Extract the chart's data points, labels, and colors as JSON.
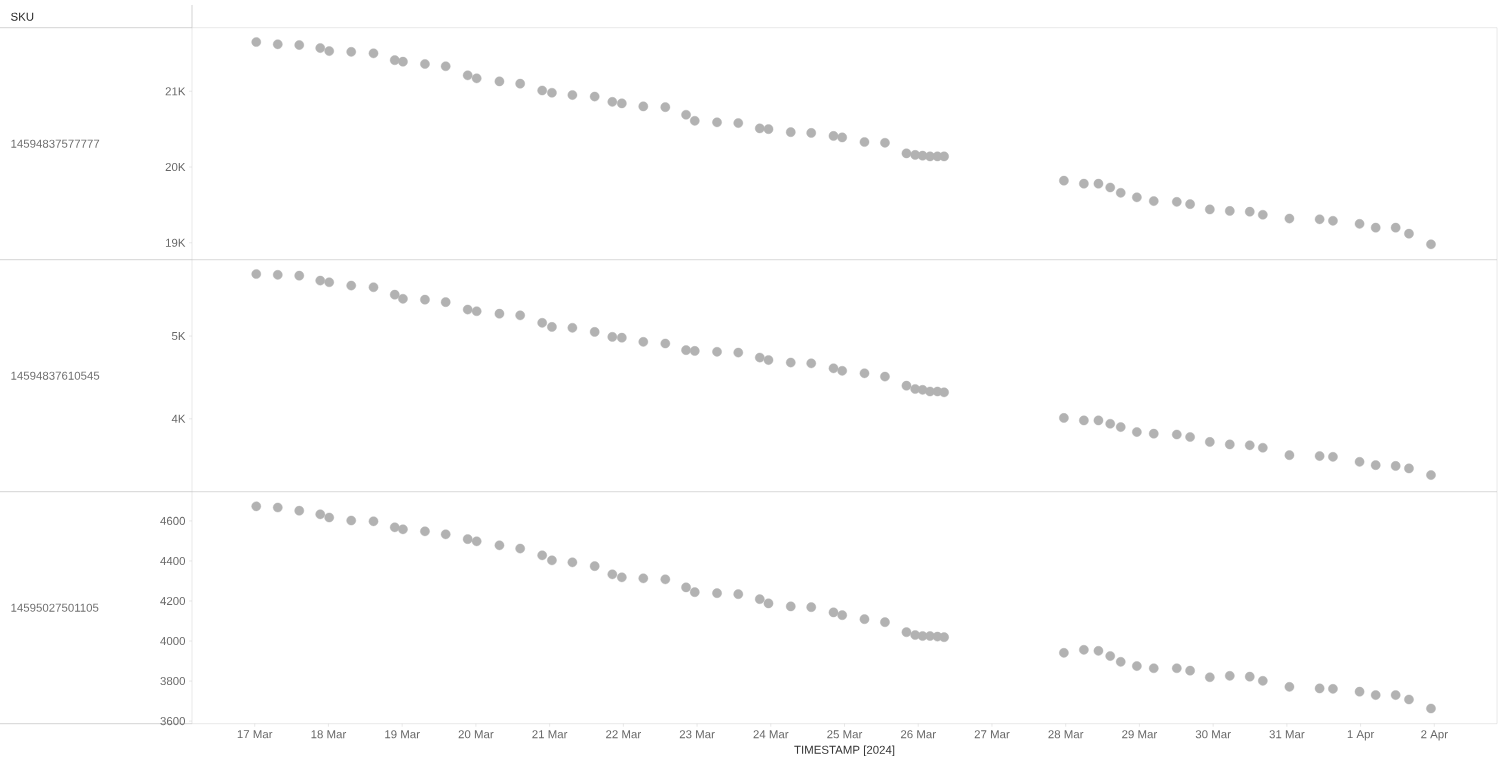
{
  "chart_data": [
    {
      "type": "scatter",
      "annotations": [
        "SKU"
      ],
      "ylabel": "14594837577777",
      "marker": "circle",
      "tick_labels": "y",
      "x": [
        "2024-03-17T00:30",
        "2024-03-17T07:30",
        "2024-03-17T14:30",
        "2024-03-17T21:20",
        "2024-03-18T00:15",
        "2024-03-18T07:25",
        "2024-03-18T14:40",
        "2024-03-18T21:35",
        "2024-03-19T00:15",
        "2024-03-19T07:25",
        "2024-03-19T14:10",
        "2024-03-19T21:20",
        "2024-03-20T00:15",
        "2024-03-20T07:40",
        "2024-03-20T14:25",
        "2024-03-20T21:35",
        "2024-03-21T00:45",
        "2024-03-21T07:25",
        "2024-03-21T14:40",
        "2024-03-21T20:25",
        "2024-03-21T23:30",
        "2024-03-22T06:30",
        "2024-03-22T13:40",
        "2024-03-22T20:25",
        "2024-03-22T23:15",
        "2024-03-23T06:30",
        "2024-03-23T13:25",
        "2024-03-23T20:25",
        "2024-03-23T23:15",
        "2024-03-24T06:30",
        "2024-03-24T13:10",
        "2024-03-24T20:25",
        "2024-03-24T23:15",
        "2024-03-25T06:30",
        "2024-03-25T13:10",
        "2024-03-25T20:10",
        "2024-03-25T23:00",
        "2024-03-26T01:25",
        "2024-03-26T03:50",
        "2024-03-26T06:15",
        "2024-03-26T08:25",
        "2024-03-27T23:25",
        "2024-03-28T05:55",
        "2024-03-28T10:40",
        "2024-03-28T14:30",
        "2024-03-28T17:55",
        "2024-03-28T23:10",
        "2024-03-29T04:40",
        "2024-03-29T12:10",
        "2024-03-29T16:30",
        "2024-03-29T22:55",
        "2024-03-30T05:25",
        "2024-03-30T11:55",
        "2024-03-30T16:10",
        "2024-03-31T00:50",
        "2024-03-31T10:40",
        "2024-03-31T15:00",
        "2024-03-31T23:40",
        "2024-04-01T04:55",
        "2024-04-01T11:25",
        "2024-04-01T15:45",
        "2024-04-01T22:55"
      ],
      "series": [
        {
          "color": "#b2b2b2",
          "values": [
            21650,
            21620,
            21610,
            21570,
            21530,
            21520,
            21500,
            21410,
            21390,
            21360,
            21330,
            21210,
            21170,
            21130,
            21100,
            21010,
            20980,
            20950,
            20930,
            20860,
            20840,
            20800,
            20790,
            20690,
            20610,
            20590,
            20580,
            20510,
            20500,
            20460,
            20450,
            20410,
            20390,
            20330,
            20320,
            20180,
            20160,
            20150,
            20140,
            20140,
            20140,
            19820,
            19780,
            19780,
            19730,
            19660,
            19600,
            19550,
            19540,
            19510,
            19440,
            19420,
            19410,
            19370,
            19320,
            19310,
            19290,
            19250,
            19200,
            19200,
            19120,
            18980
          ]
        }
      ],
      "xlim": [
        "2024-03-16T03:35",
        "2024-04-02T20:25"
      ],
      "ylim": [
        18777,
        21839
      ],
      "yticks": [
        {
          "value": 19000,
          "label": "19K"
        },
        {
          "value": 20000,
          "label": "20K"
        },
        {
          "value": 21000,
          "label": "21K"
        }
      ]
    },
    {
      "type": "scatter",
      "ylabel": "14594837610545",
      "marker": "circle",
      "tick_labels": "y",
      "x": [
        "2024-03-17T00:30",
        "2024-03-17T07:30",
        "2024-03-17T14:30",
        "2024-03-17T21:20",
        "2024-03-18T00:15",
        "2024-03-18T07:25",
        "2024-03-18T14:40",
        "2024-03-18T21:35",
        "2024-03-19T00:15",
        "2024-03-19T07:25",
        "2024-03-19T14:10",
        "2024-03-19T21:20",
        "2024-03-20T00:15",
        "2024-03-20T07:40",
        "2024-03-20T14:25",
        "2024-03-20T21:35",
        "2024-03-21T00:45",
        "2024-03-21T07:25",
        "2024-03-21T14:40",
        "2024-03-21T20:25",
        "2024-03-21T23:30",
        "2024-03-22T06:30",
        "2024-03-22T13:40",
        "2024-03-22T20:25",
        "2024-03-22T23:15",
        "2024-03-23T06:30",
        "2024-03-23T13:25",
        "2024-03-23T20:25",
        "2024-03-23T23:15",
        "2024-03-24T06:30",
        "2024-03-24T13:10",
        "2024-03-24T20:25",
        "2024-03-24T23:15",
        "2024-03-25T06:30",
        "2024-03-25T13:10",
        "2024-03-25T20:10",
        "2024-03-25T23:00",
        "2024-03-26T01:25",
        "2024-03-26T03:50",
        "2024-03-26T06:15",
        "2024-03-26T08:25",
        "2024-03-27T23:25",
        "2024-03-28T05:55",
        "2024-03-28T10:40",
        "2024-03-28T14:30",
        "2024-03-28T17:55",
        "2024-03-28T23:10",
        "2024-03-29T04:40",
        "2024-03-29T12:10",
        "2024-03-29T16:30",
        "2024-03-29T22:55",
        "2024-03-30T05:25",
        "2024-03-30T11:55",
        "2024-03-30T16:10",
        "2024-03-31T00:50",
        "2024-03-31T10:40",
        "2024-03-31T15:00",
        "2024-03-31T23:40",
        "2024-04-01T04:55",
        "2024-04-01T11:25",
        "2024-04-01T15:45",
        "2024-04-01T22:55"
      ],
      "series": [
        {
          "color": "#b2b2b2",
          "values": [
            5750,
            5740,
            5730,
            5670,
            5650,
            5610,
            5590,
            5500,
            5450,
            5440,
            5410,
            5320,
            5300,
            5270,
            5250,
            5160,
            5110,
            5100,
            5050,
            4990,
            4980,
            4930,
            4910,
            4830,
            4820,
            4810,
            4800,
            4740,
            4710,
            4680,
            4670,
            4610,
            4580,
            4550,
            4510,
            4400,
            4360,
            4350,
            4330,
            4330,
            4320,
            4010,
            3980,
            3980,
            3940,
            3900,
            3840,
            3820,
            3810,
            3780,
            3720,
            3690,
            3680,
            3650,
            3560,
            3550,
            3540,
            3480,
            3440,
            3430,
            3400,
            3320
          ]
        }
      ],
      "xlim": [
        "2024-03-16T03:35",
        "2024-04-02T20:25"
      ],
      "ylim": [
        3119,
        5923
      ],
      "yticks": [
        {
          "value": 4000,
          "label": "4K"
        },
        {
          "value": 5000,
          "label": "5K"
        }
      ]
    },
    {
      "type": "scatter",
      "ylabel": "14595027501105",
      "xlabel": "TIMESTAMP [2024]",
      "marker": "circle",
      "x": [
        "2024-03-17T00:30",
        "2024-03-17T07:30",
        "2024-03-17T14:30",
        "2024-03-17T21:20",
        "2024-03-18T00:15",
        "2024-03-18T07:25",
        "2024-03-18T14:40",
        "2024-03-18T21:35",
        "2024-03-19T00:15",
        "2024-03-19T07:25",
        "2024-03-19T14:10",
        "2024-03-19T21:20",
        "2024-03-20T00:15",
        "2024-03-20T07:40",
        "2024-03-20T14:25",
        "2024-03-20T21:35",
        "2024-03-21T00:45",
        "2024-03-21T07:25",
        "2024-03-21T14:40",
        "2024-03-21T20:25",
        "2024-03-21T23:30",
        "2024-03-22T06:30",
        "2024-03-22T13:40",
        "2024-03-22T20:25",
        "2024-03-22T23:15",
        "2024-03-23T06:30",
        "2024-03-23T13:25",
        "2024-03-23T20:25",
        "2024-03-23T23:15",
        "2024-03-24T06:30",
        "2024-03-24T13:10",
        "2024-03-24T20:25",
        "2024-03-24T23:15",
        "2024-03-25T06:30",
        "2024-03-25T13:10",
        "2024-03-25T20:10",
        "2024-03-25T23:00",
        "2024-03-26T01:25",
        "2024-03-26T03:50",
        "2024-03-26T06:15",
        "2024-03-26T08:25",
        "2024-03-27T23:25",
        "2024-03-28T05:55",
        "2024-03-28T10:40",
        "2024-03-28T14:30",
        "2024-03-28T17:55",
        "2024-03-28T23:10",
        "2024-03-29T04:40",
        "2024-03-29T12:10",
        "2024-03-29T16:30",
        "2024-03-29T22:55",
        "2024-03-30T05:25",
        "2024-03-30T11:55",
        "2024-03-30T16:10",
        "2024-03-31T00:50",
        "2024-03-31T10:40",
        "2024-03-31T15:00",
        "2024-03-31T23:40",
        "2024-04-01T04:55",
        "2024-04-01T11:25",
        "2024-04-01T15:45",
        "2024-04-01T22:55"
      ],
      "series": [
        {
          "color": "#b2b2b2",
          "values": [
            4673,
            4667,
            4651,
            4633,
            4617,
            4602,
            4598,
            4568,
            4558,
            4548,
            4533,
            4509,
            4498,
            4478,
            4462,
            4428,
            4403,
            4393,
            4374,
            4333,
            4318,
            4313,
            4308,
            4268,
            4244,
            4239,
            4234,
            4209,
            4188,
            4173,
            4169,
            4143,
            4129,
            4109,
            4094,
            4044,
            4030,
            4025,
            4025,
            4022,
            4019,
            3941,
            3956,
            3951,
            3925,
            3896,
            3875,
            3864,
            3864,
            3852,
            3819,
            3826,
            3822,
            3801,
            3771,
            3763,
            3761,
            3747,
            3730,
            3730,
            3708,
            3663
          ]
        }
      ],
      "xlim": [
        "2024-03-16T03:35",
        "2024-04-02T20:25"
      ],
      "xticks": [
        {
          "value": "2024-03-17",
          "label": "17 Mar"
        },
        {
          "value": "2024-03-18",
          "label": "18 Mar"
        },
        {
          "value": "2024-03-19",
          "label": "19 Mar"
        },
        {
          "value": "2024-03-20",
          "label": "20 Mar"
        },
        {
          "value": "2024-03-21",
          "label": "21 Mar"
        },
        {
          "value": "2024-03-22",
          "label": "22 Mar"
        },
        {
          "value": "2024-03-23",
          "label": "23 Mar"
        },
        {
          "value": "2024-03-24",
          "label": "24 Mar"
        },
        {
          "value": "2024-03-25",
          "label": "25 Mar"
        },
        {
          "value": "2024-03-26",
          "label": "26 Mar"
        },
        {
          "value": "2024-03-27",
          "label": "27 Mar"
        },
        {
          "value": "2024-03-28",
          "label": "28 Mar"
        },
        {
          "value": "2024-03-29",
          "label": "29 Mar"
        },
        {
          "value": "2024-03-30",
          "label": "30 Mar"
        },
        {
          "value": "2024-03-31",
          "label": "31 Mar"
        },
        {
          "value": "2024-04-01",
          "label": "1 Apr"
        },
        {
          "value": "2024-04-02",
          "label": "2 Apr"
        }
      ],
      "ylim": [
        3587,
        4746
      ],
      "yticks": [
        3600,
        3800,
        4000,
        4200,
        4400,
        4600
      ]
    }
  ]
}
